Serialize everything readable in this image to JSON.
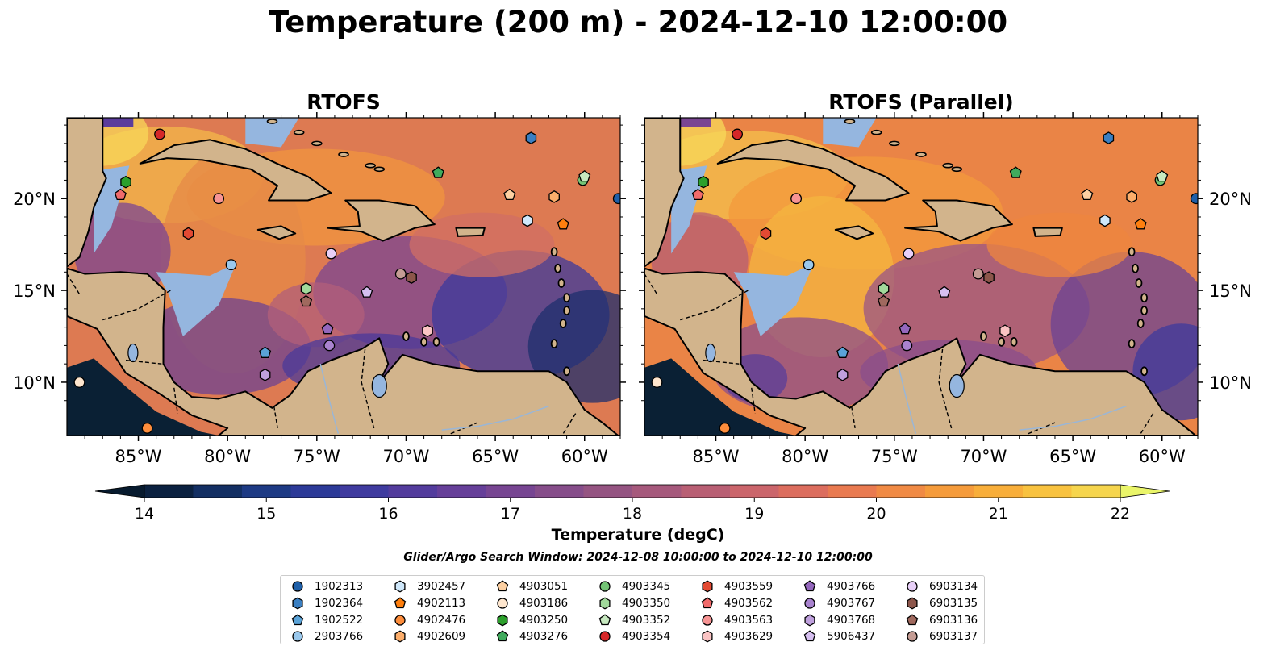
{
  "title": "Temperature (200 m) - 2024-12-10 12:00:00",
  "panels": [
    {
      "title": "RTOFS"
    },
    {
      "title": "RTOFS (Parallel)"
    }
  ],
  "lon_ticks": [
    "85°W",
    "80°W",
    "75°W",
    "70°W",
    "65°W",
    "60°W"
  ],
  "lat_ticks": [
    "20°N",
    "15°N",
    "10°N"
  ],
  "colorbar": {
    "ticks": [
      "14",
      "15",
      "16",
      "17",
      "18",
      "19",
      "20",
      "21",
      "22"
    ],
    "label": "Temperature (degC)",
    "min": 14,
    "max": 22,
    "step": 0.5,
    "colors": [
      "#0b2140",
      "#132f63",
      "#1d3a84",
      "#2c3a98",
      "#3f3b9f",
      "#533c9d",
      "#663f99",
      "#774592",
      "#864d8a",
      "#955482",
      "#a6597c",
      "#b95f74",
      "#cb656b",
      "#dc6d5e",
      "#e97a50",
      "#f08a44",
      "#f59b3b",
      "#f8ae3a",
      "#f8c23f",
      "#f6d54d"
    ],
    "under_color": "#071a2e",
    "over_color": "#eaf56a"
  },
  "search_window": "Glider/Argo Search Window: 2024-12-08 10:00:00 to 2024-12-10 12:00:00",
  "legend": [
    {
      "id": "1902313",
      "shape": "circle",
      "color": "#1f5fa8"
    },
    {
      "id": "1902364",
      "shape": "hexagon",
      "color": "#3a7fc2"
    },
    {
      "id": "1902522",
      "shape": "pentagon",
      "color": "#5aa3d8"
    },
    {
      "id": "2903766",
      "shape": "circle",
      "color": "#9ac8ec"
    },
    {
      "id": "3902457",
      "shape": "hexagon",
      "color": "#cfe8fb"
    },
    {
      "id": "4902113",
      "shape": "pentagon",
      "color": "#ff7f0e"
    },
    {
      "id": "4902476",
      "shape": "circle",
      "color": "#fd8d3c"
    },
    {
      "id": "4902609",
      "shape": "hexagon",
      "color": "#fdae6b"
    },
    {
      "id": "4903051",
      "shape": "pentagon",
      "color": "#fdd0a2"
    },
    {
      "id": "4903186",
      "shape": "circle",
      "color": "#fee6ce"
    },
    {
      "id": "4903250",
      "shape": "hexagon",
      "color": "#2ca02c"
    },
    {
      "id": "4903276",
      "shape": "pentagon",
      "color": "#41ab5d"
    },
    {
      "id": "4903345",
      "shape": "circle",
      "color": "#74c476"
    },
    {
      "id": "4903350",
      "shape": "hexagon",
      "color": "#a1d99b"
    },
    {
      "id": "4903352",
      "shape": "pentagon",
      "color": "#c7e9c0"
    },
    {
      "id": "4903354",
      "shape": "circle",
      "color": "#d62728"
    },
    {
      "id": "4903559",
      "shape": "hexagon",
      "color": "#e34a33"
    },
    {
      "id": "4903562",
      "shape": "pentagon",
      "color": "#f16b6b"
    },
    {
      "id": "4903563",
      "shape": "circle",
      "color": "#f79494"
    },
    {
      "id": "4903629",
      "shape": "hexagon",
      "color": "#fbc4c4"
    },
    {
      "id": "4903766",
      "shape": "pentagon",
      "color": "#9467bd"
    },
    {
      "id": "4903767",
      "shape": "circle",
      "color": "#a983cf"
    },
    {
      "id": "4903768",
      "shape": "hexagon",
      "color": "#bfa0dd"
    },
    {
      "id": "5906437",
      "shape": "pentagon",
      "color": "#d6bff0"
    },
    {
      "id": "6903134",
      "shape": "circle",
      "color": "#e8d0f8"
    },
    {
      "id": "6903135",
      "shape": "hexagon",
      "color": "#8c564b"
    },
    {
      "id": "6903136",
      "shape": "pentagon",
      "color": "#a0695e"
    },
    {
      "id": "6903137",
      "shape": "circle",
      "color": "#c49c94"
    }
  ],
  "floats": [
    {
      "id": "4903354",
      "lon": -83.8,
      "lat": 23.5
    },
    {
      "id": "1902364",
      "lon": -63.0,
      "lat": 23.3
    },
    {
      "id": "4903250",
      "lon": -85.7,
      "lat": 20.9
    },
    {
      "id": "4903276",
      "lon": -68.2,
      "lat": 21.4
    },
    {
      "id": "4903345",
      "lon": -60.1,
      "lat": 21.0
    },
    {
      "id": "4903352",
      "lon": -60.0,
      "lat": 21.2
    },
    {
      "id": "4903562",
      "lon": -86.0,
      "lat": 20.2
    },
    {
      "id": "4903563",
      "lon": -80.5,
      "lat": 20.0
    },
    {
      "id": "4903051",
      "lon": -64.2,
      "lat": 20.2
    },
    {
      "id": "4902609",
      "lon": -61.7,
      "lat": 20.1
    },
    {
      "id": "1902313",
      "lon": -58.1,
      "lat": 20.0
    },
    {
      "id": "3902457",
      "lon": -63.2,
      "lat": 18.8
    },
    {
      "id": "4902113",
      "lon": -61.2,
      "lat": 18.6
    },
    {
      "id": "4903559",
      "lon": -82.2,
      "lat": 18.1
    },
    {
      "id": "2903766",
      "lon": -79.8,
      "lat": 16.4
    },
    {
      "id": "6903134",
      "lon": -74.2,
      "lat": 17.0
    },
    {
      "id": "6903137",
      "lon": -70.3,
      "lat": 15.9
    },
    {
      "id": "6903135",
      "lon": -69.7,
      "lat": 15.7
    },
    {
      "id": "4903350",
      "lon": -75.6,
      "lat": 15.1
    },
    {
      "id": "5906437",
      "lon": -72.2,
      "lat": 14.9
    },
    {
      "id": "6903136",
      "lon": -75.6,
      "lat": 14.4
    },
    {
      "id": "4903766",
      "lon": -74.4,
      "lat": 12.9
    },
    {
      "id": "4903629",
      "lon": -68.8,
      "lat": 12.8
    },
    {
      "id": "4903767",
      "lon": -74.3,
      "lat": 12.0
    },
    {
      "id": "1902522",
      "lon": -77.9,
      "lat": 11.6
    },
    {
      "id": "4903768",
      "lon": -77.9,
      "lat": 10.4
    },
    {
      "id": "4903186",
      "lon": -88.3,
      "lat": 10.0
    },
    {
      "id": "4902476",
      "lon": -84.5,
      "lat": 7.5
    }
  ]
}
